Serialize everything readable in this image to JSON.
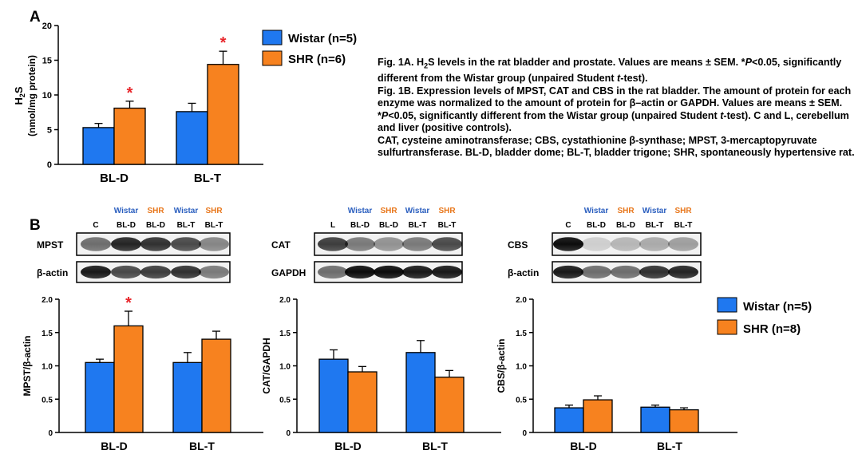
{
  "colors": {
    "wistar": "#1f78f0",
    "shr": "#f7821f",
    "star": "#e8262b",
    "wistar_label": "#2b5fbf",
    "shr_label": "#e8761a"
  },
  "panel_a": {
    "letter": "A",
    "legend": {
      "wistar": "Wistar (n=5)",
      "shr": "SHR (n=6)"
    },
    "chart": {
      "type": "bar",
      "categories": [
        "BL-D",
        "BL-T"
      ],
      "series": [
        {
          "name": "Wistar (n=5)",
          "values": [
            5.3,
            7.6
          ],
          "errors": [
            0.6,
            1.2
          ]
        },
        {
          "name": "SHR (n=6)",
          "values": [
            8.1,
            14.4
          ],
          "errors": [
            1.0,
            1.9
          ]
        }
      ],
      "ylabel_main": "H",
      "ylabel_sub": "2",
      "ylabel_tail": "S",
      "ylabel2": "(nmol/mg protein)",
      "ylim": [
        0,
        20
      ],
      "yticks": [
        "0",
        "5",
        "10",
        "15",
        "20"
      ],
      "significance": [
        "*",
        "*"
      ]
    }
  },
  "caption": {
    "p1": [
      "Fig. 1A. H",
      "2",
      "S levels in the rat bladder and prostate. Values are means ± SEM.  *",
      "P",
      "<0.05, significantly different from the Wistar group (unpaired Student ",
      "t",
      "-test)."
    ],
    "p2": [
      "Fig. 1B. Expression levels of MPST, CAT and CBS in the rat bladder.  The amount of protein for each enzyme was normalized to the amount of protein for β–actin or GAPDH. Values are means ± SEM.  *",
      "P",
      "<0.05, significantly different from the Wistar group (unpaired Student ",
      "t",
      "-test).  C and L, cerebellum and liver (positive controls)."
    ],
    "p3": "CAT, cysteine aminotransferase; CBS, cystathionine β-synthase; MPST, 3-mercaptopyruvate sulfurtransferase. BL-D, bladder dome; BL-T, bladder trigone; SHR, spontaneously hypertensive rat."
  },
  "panel_b": {
    "letter": "B",
    "legend": {
      "wistar": "Wistar (n=5)",
      "shr": "SHR (n=8)"
    },
    "blots": [
      {
        "group_labels": [
          "Wistar",
          "SHR",
          "Wistar",
          "SHR"
        ],
        "lanes": [
          "C",
          "BL-D",
          "BL-D",
          "BL-T",
          "BL-T"
        ],
        "top_band": "MPST",
        "bottom_band": "β-actin"
      },
      {
        "group_labels": [
          "Wistar",
          "SHR",
          "Wistar",
          "SHR"
        ],
        "lanes": [
          "L",
          "BL-D",
          "BL-D",
          "BL-T",
          "BL-T"
        ],
        "top_band": "CAT",
        "bottom_band": "GAPDH"
      },
      {
        "group_labels": [
          "Wistar",
          "SHR",
          "Wistar",
          "SHR"
        ],
        "lanes": [
          "C",
          "BL-D",
          "BL-D",
          "BL-T",
          "BL-T"
        ],
        "top_band": "CBS",
        "bottom_band": "β-actin"
      }
    ]
  },
  "chart_data": [
    {
      "type": "bar",
      "categories": [
        "BL-D",
        "BL-T"
      ],
      "series": [
        {
          "name": "Wistar (n=5)",
          "values": [
            5.3,
            7.6
          ],
          "errors": [
            0.6,
            1.2
          ]
        },
        {
          "name": "SHR (n=6)",
          "values": [
            8.1,
            14.4
          ],
          "errors": [
            1.0,
            1.9
          ]
        }
      ],
      "ylabel": "H2S (nmol/mg protein)",
      "ylim": [
        0,
        20
      ],
      "significance": [
        "*",
        "*"
      ]
    },
    {
      "type": "bar",
      "categories": [
        "BL-D",
        "BL-T"
      ],
      "series": [
        {
          "name": "Wistar (n=5)",
          "values": [
            1.05,
            1.05
          ],
          "errors": [
            0.05,
            0.15
          ]
        },
        {
          "name": "SHR (n=8)",
          "values": [
            1.6,
            1.4
          ],
          "errors": [
            0.22,
            0.12
          ]
        }
      ],
      "ylabel": "MPST/β-actin",
      "ylim": [
        0,
        2.0
      ],
      "yticks": [
        "0",
        "0.5",
        "1.0",
        "1.5",
        "2.0"
      ],
      "significance": [
        "*",
        ""
      ]
    },
    {
      "type": "bar",
      "categories": [
        "BL-D",
        "BL-T"
      ],
      "series": [
        {
          "name": "Wistar (n=5)",
          "values": [
            1.1,
            1.2
          ],
          "errors": [
            0.14,
            0.18
          ]
        },
        {
          "name": "SHR (n=8)",
          "values": [
            0.91,
            0.83
          ],
          "errors": [
            0.08,
            0.1
          ]
        }
      ],
      "ylabel": "CAT/GAPDH",
      "ylim": [
        0,
        2.0
      ],
      "yticks": [
        "0",
        "0.5",
        "1.0",
        "1.5",
        "2.0"
      ],
      "significance": [
        "",
        ""
      ]
    },
    {
      "type": "bar",
      "categories": [
        "BL-D",
        "BL-T"
      ],
      "series": [
        {
          "name": "Wistar (n=5)",
          "values": [
            0.37,
            0.38
          ],
          "errors": [
            0.04,
            0.03
          ]
        },
        {
          "name": "SHR (n=8)",
          "values": [
            0.49,
            0.34
          ],
          "errors": [
            0.06,
            0.03
          ]
        }
      ],
      "ylabel": "CBS/β-actin",
      "ylim": [
        0,
        2.0
      ],
      "yticks": [
        "0",
        "0.5",
        "1.0",
        "1.5",
        "2.0"
      ],
      "significance": [
        "",
        ""
      ]
    }
  ]
}
